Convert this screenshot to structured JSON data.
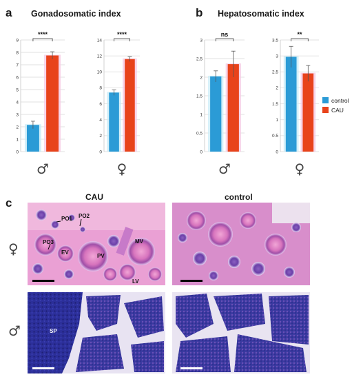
{
  "panel_a": {
    "letter": "a",
    "title": "Gonadosomatic index"
  },
  "panel_b": {
    "letter": "b",
    "title": "Hepatosomatic index"
  },
  "panel_c": {
    "letter": "c",
    "col_titles": [
      "CAU",
      "control"
    ],
    "row_symbols": [
      "♀",
      "♂"
    ],
    "labels": [
      "PO1",
      "PO2",
      "PO3",
      "EV",
      "PV",
      "MV",
      "LV",
      "SP"
    ]
  },
  "legend": [
    {
      "name": "control",
      "color": "#2b9bd6"
    },
    {
      "name": "CAU",
      "color": "#e8431b"
    }
  ],
  "chart_data": [
    {
      "type": "bar",
      "panel": "a",
      "sex": "♂",
      "categories": [
        "control",
        "CAU"
      ],
      "values": [
        2.15,
        7.75
      ],
      "errors": [
        0.3,
        0.3
      ],
      "ylim": [
        0,
        9
      ],
      "yticks": [
        "0",
        "1",
        "2",
        "3",
        "4",
        "5",
        "6",
        "7",
        "8",
        "9"
      ],
      "significance": "****"
    },
    {
      "type": "bar",
      "panel": "a",
      "sex": "♀",
      "categories": [
        "control",
        "CAU"
      ],
      "values": [
        7.4,
        11.6
      ],
      "errors": [
        0.35,
        0.3
      ],
      "ylim": [
        0,
        14
      ],
      "yticks": [
        "0",
        "2",
        "4",
        "6",
        "8",
        "10",
        "12",
        "14"
      ],
      "significance": "****"
    },
    {
      "type": "bar",
      "panel": "b",
      "sex": "♂",
      "categories": [
        "control",
        "CAU"
      ],
      "values": [
        2.02,
        2.35
      ],
      "errors": [
        0.15,
        0.35
      ],
      "ylim": [
        0,
        3
      ],
      "yticks": [
        "0",
        "0.5",
        "1",
        "1.5",
        "2",
        "2.5",
        "3"
      ],
      "significance": "ns"
    },
    {
      "type": "bar",
      "panel": "b",
      "sex": "♀",
      "categories": [
        "control",
        "CAU"
      ],
      "values": [
        2.97,
        2.45
      ],
      "errors": [
        0.33,
        0.25
      ],
      "ylim": [
        0,
        3.5
      ],
      "yticks": [
        "0",
        "0.5",
        "1",
        "1.5",
        "2",
        "2.5",
        "3",
        "3.5"
      ],
      "significance": "**"
    }
  ]
}
